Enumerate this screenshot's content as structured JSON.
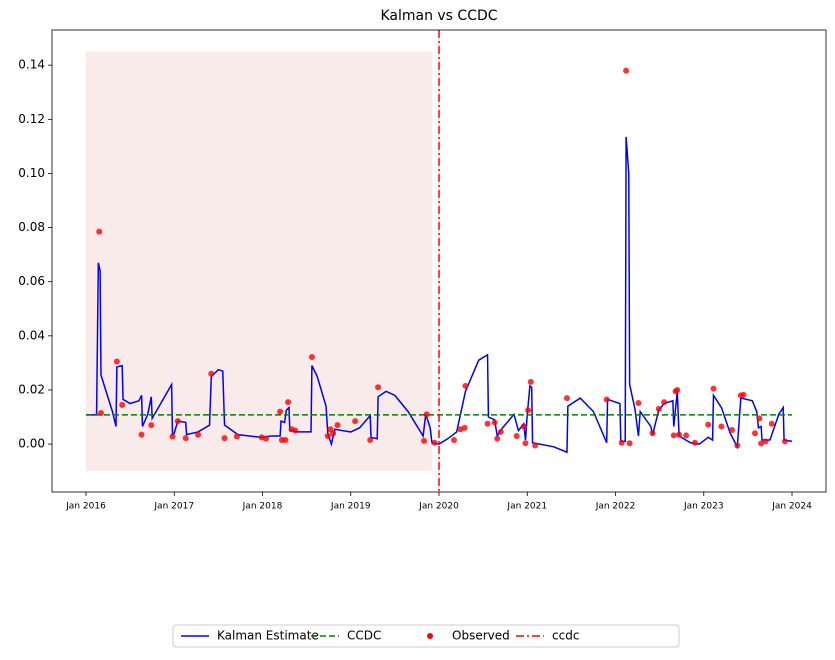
{
  "chart_data": {
    "type": "line",
    "title": "Kalman vs CCDC",
    "xlim": [
      2015.615,
      2024.385
    ],
    "ylim": [
      -0.0177,
      0.153
    ],
    "xticks": [
      {
        "value": 2016,
        "label": "Jan 2016"
      },
      {
        "value": 2017,
        "label": "Jan 2017"
      },
      {
        "value": 2018,
        "label": "Jan 2018"
      },
      {
        "value": 2019,
        "label": "Jan 2019"
      },
      {
        "value": 2020,
        "label": "Jan 2020"
      },
      {
        "value": 2021,
        "label": "Jan 2021"
      },
      {
        "value": 2022,
        "label": "Jan 2022"
      },
      {
        "value": 2023,
        "label": "Jan 2023"
      },
      {
        "value": 2024,
        "label": "Jan 2024"
      }
    ],
    "yticks": [
      {
        "value": 0,
        "label": "0.00"
      },
      0.02,
      0.04,
      0.06,
      0.08,
      {
        "value": 0.1,
        "label": "0.10"
      },
      0.12,
      0.14
    ],
    "shaded_region": {
      "x": [
        2016,
        2019.92
      ],
      "y": [
        -0.01,
        0.145
      ],
      "color": "#f9ebe9"
    },
    "legend": "lower center",
    "series": [
      {
        "name": "Kalman Estimate",
        "type": "line",
        "color": "#0000ff",
        "x": [
          2016.0,
          2016.12,
          2016.14,
          2016.16,
          2016.17,
          2016.3,
          2016.34,
          2016.35,
          2016.41,
          2016.42,
          2016.5,
          2016.6,
          2016.63,
          2016.64,
          2016.7,
          2016.74,
          2016.75,
          2016.9,
          2016.97,
          2016.98,
          2017.0,
          2017.04,
          2017.13,
          2017.14,
          2017.27,
          2017.4,
          2017.42,
          2017.5,
          2017.55,
          2017.57,
          2017.7,
          2017.72,
          2017.99,
          2018.1,
          2018.2,
          2018.21,
          2018.25,
          2018.27,
          2018.3,
          2018.31,
          2018.4,
          2018.55,
          2018.56,
          2018.62,
          2018.72,
          2018.74,
          2018.78,
          2018.82,
          2018.9,
          2019.0,
          2019.1,
          2019.22,
          2019.23,
          2019.3,
          2019.31,
          2019.4,
          2019.5,
          2019.65,
          2019.82,
          2019.85,
          2019.9,
          2019.92,
          2020.0,
          2020.1,
          2020.2,
          2020.3,
          2020.45,
          2020.55,
          2020.56,
          2020.63,
          2020.66,
          2020.72,
          2020.85,
          2020.9,
          2020.96,
          2020.98,
          2021.0,
          2021.03,
          2021.05,
          2021.06,
          2021.3,
          2021.45,
          2021.46,
          2021.6,
          2021.75,
          2021.9,
          2021.91,
          2022.05,
          2022.06,
          2022.11,
          2022.12,
          2022.15,
          2022.16,
          2022.22,
          2022.26,
          2022.28,
          2022.4,
          2022.42,
          2022.49,
          2022.55,
          2022.65,
          2022.66,
          2022.7,
          2022.72,
          2022.85,
          2022.95,
          2023.05,
          2023.1,
          2023.11,
          2023.2,
          2023.3,
          2023.38,
          2023.42,
          2023.55,
          2023.6,
          2023.62,
          2023.65,
          2023.66,
          2023.75,
          2023.85,
          2023.9,
          2023.91,
          2024.0
        ],
        "values": [
          0.0108,
          0.0108,
          0.067,
          0.064,
          0.0255,
          0.012,
          0.0065,
          0.0285,
          0.029,
          0.0165,
          0.015,
          0.016,
          0.018,
          0.0065,
          0.011,
          0.0175,
          0.0095,
          0.018,
          0.022,
          0.0035,
          0.004,
          0.0085,
          0.008,
          0.0035,
          0.0045,
          0.007,
          0.025,
          0.0275,
          0.027,
          0.007,
          0.004,
          0.0035,
          0.0025,
          0.003,
          0.003,
          0.0085,
          0.008,
          0.0125,
          0.0135,
          0.005,
          0.0045,
          0.0045,
          0.029,
          0.025,
          0.014,
          0.004,
          0.0,
          0.0055,
          0.005,
          0.0045,
          0.006,
          0.0105,
          0.0025,
          0.002,
          0.0175,
          0.0195,
          0.018,
          0.012,
          0.003,
          0.011,
          0.006,
          0.0005,
          0.0,
          0.002,
          0.0045,
          0.0195,
          0.031,
          0.033,
          0.01,
          0.009,
          0.003,
          0.006,
          0.011,
          0.005,
          0.0075,
          0.0015,
          0.011,
          0.0215,
          0.021,
          0.0005,
          -0.001,
          -0.003,
          0.014,
          0.017,
          0.012,
          0.0005,
          0.0165,
          0.015,
          0.001,
          0.001,
          0.1135,
          0.1,
          0.022,
          0.013,
          0.003,
          0.012,
          0.0065,
          0.0035,
          0.0125,
          0.015,
          0.016,
          0.0065,
          0.0195,
          0.003,
          0.0005,
          0.0,
          0.0025,
          0.0015,
          0.018,
          0.0135,
          0.004,
          -0.001,
          0.017,
          0.016,
          0.012,
          0.006,
          0.0065,
          0.0015,
          0.0015,
          0.011,
          0.0135,
          0.0015,
          0.001
        ]
      },
      {
        "name": "CCDC",
        "type": "dashed",
        "color": "#008000",
        "x": [
          2016,
          2024
        ],
        "values": [
          0.0108,
          0.0108
        ]
      },
      {
        "name": "Observed",
        "type": "scatter",
        "color": "#ff0000",
        "x": [
          2016.15,
          2016.17,
          2016.35,
          2016.41,
          2016.63,
          2016.74,
          2016.98,
          2017.04,
          2017.13,
          2017.27,
          2017.42,
          2017.57,
          2017.71,
          2017.99,
          2018.04,
          2018.2,
          2018.22,
          2018.26,
          2018.29,
          2018.33,
          2018.37,
          2018.56,
          2018.74,
          2018.77,
          2018.8,
          2018.85,
          2019.05,
          2019.22,
          2019.31,
          2019.83,
          2019.86,
          2019.95,
          2020.17,
          2020.24,
          2020.29,
          2020.3,
          2020.55,
          2020.63,
          2020.66,
          2020.7,
          2020.88,
          2020.96,
          2020.98,
          2021.01,
          2021.04,
          2021.09,
          2021.45,
          2021.9,
          2022.07,
          2022.12,
          2022.16,
          2022.26,
          2022.42,
          2022.49,
          2022.55,
          2022.66,
          2022.68,
          2022.7,
          2022.72,
          2022.8,
          2022.9,
          2023.05,
          2023.11,
          2023.2,
          2023.32,
          2023.38,
          2023.42,
          2023.45,
          2023.58,
          2023.63,
          2023.65,
          2023.7,
          2023.77,
          2023.92
        ],
        "values": [
          0.0785,
          0.0115,
          0.0305,
          0.0145,
          0.0035,
          0.007,
          0.0028,
          0.0085,
          0.0022,
          0.0035,
          0.026,
          0.0022,
          0.0028,
          0.0025,
          0.002,
          0.012,
          0.0015,
          0.0015,
          0.0155,
          0.0055,
          0.005,
          0.0322,
          0.003,
          0.0055,
          0.004,
          0.007,
          0.0085,
          0.0015,
          0.021,
          0.0012,
          0.011,
          0.0005,
          0.0015,
          0.0055,
          0.006,
          0.0215,
          0.0075,
          0.008,
          0.002,
          0.0045,
          0.003,
          0.0065,
          0.0003,
          0.0125,
          0.023,
          -0.0005,
          0.017,
          0.0165,
          0.0005,
          0.138,
          0.0003,
          0.0152,
          0.004,
          0.013,
          0.0155,
          0.0032,
          0.0195,
          0.02,
          0.0035,
          0.0032,
          0.0005,
          0.0072,
          0.0205,
          0.0065,
          0.0052,
          -0.0005,
          0.018,
          0.0182,
          0.004,
          0.0095,
          0.0002,
          0.001,
          0.0075,
          0.001
        ]
      },
      {
        "name": "ccdc",
        "type": "vline",
        "color": "#ff0000",
        "x": 2020
      }
    ]
  }
}
